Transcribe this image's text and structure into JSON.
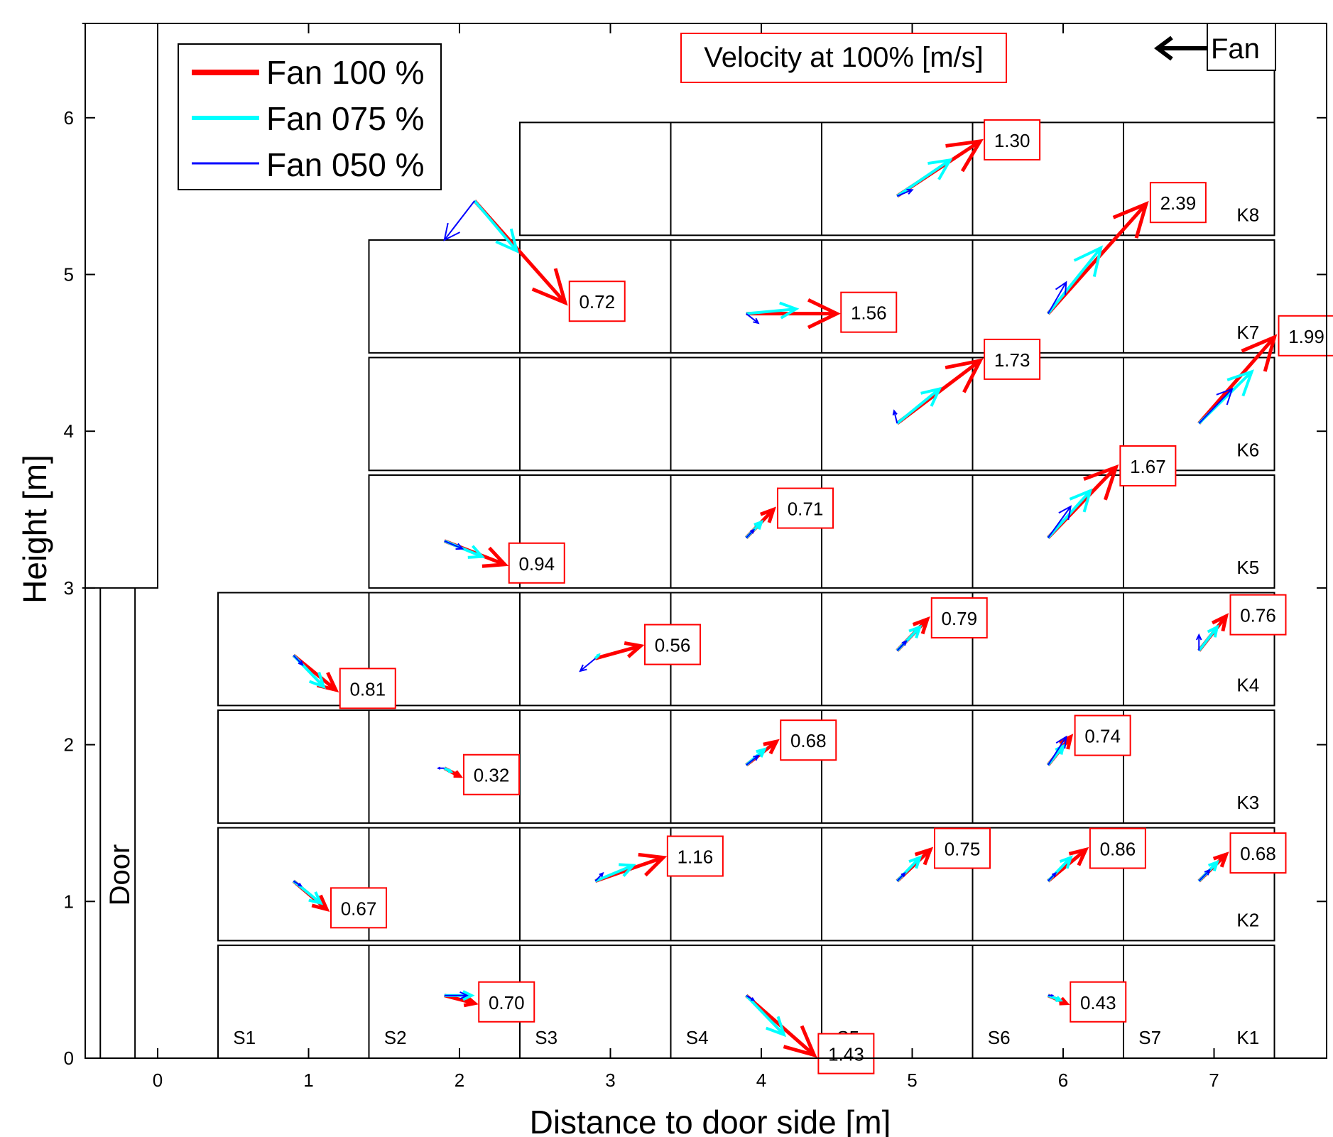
{
  "chart_data": {
    "type": "quiver",
    "xlabel": "Distance to door side [m]",
    "ylabel": "Height [m]",
    "xlim": [
      -0.5,
      7.6
    ],
    "ylim": [
      0,
      6.6
    ],
    "xticks": [
      0,
      1,
      2,
      3,
      4,
      5,
      6,
      7
    ],
    "yticks": [
      0,
      1,
      2,
      3,
      4,
      5,
      6
    ],
    "annotation_title": "Velocity at 100% [m/s]",
    "fan_label": "Fan",
    "door_label": "Door",
    "legend": {
      "placement": "top-left",
      "entries": [
        {
          "label": "Fan 100 %",
          "color": "#ff0000"
        },
        {
          "label": "Fan 075 %",
          "color": "#00ffff"
        },
        {
          "label": "Fan 050 %",
          "color": "#0000ff"
        }
      ]
    },
    "colors": {
      "fan100": "#ff0000",
      "fan075": "#00ffff",
      "fan050": "#0000ff",
      "box": "#000000"
    },
    "rows": [
      {
        "label": "K1",
        "y0": 0.0,
        "y1": 0.72,
        "x0": 0.4,
        "x1": 7.4
      },
      {
        "label": "K2",
        "y0": 0.75,
        "y1": 1.47,
        "x0": 0.4,
        "x1": 7.4
      },
      {
        "label": "K3",
        "y0": 1.5,
        "y1": 2.22,
        "x0": 0.4,
        "x1": 7.4
      },
      {
        "label": "K4",
        "y0": 2.25,
        "y1": 2.97,
        "x0": 0.4,
        "x1": 7.4
      },
      {
        "label": "K5",
        "y0": 3.0,
        "y1": 3.72,
        "x0": 1.4,
        "x1": 7.4
      },
      {
        "label": "K6",
        "y0": 3.75,
        "y1": 4.47,
        "x0": 1.4,
        "x1": 7.4
      },
      {
        "label": "K7",
        "y0": 4.5,
        "y1": 5.22,
        "x0": 1.4,
        "x1": 7.4
      },
      {
        "label": "K8",
        "y0": 5.25,
        "y1": 5.97,
        "x0": 2.4,
        "x1": 7.4
      }
    ],
    "column_labels": [
      "S1",
      "S2",
      "S3",
      "S4",
      "S5",
      "S6",
      "S7"
    ],
    "vectors": [
      {
        "x": 2.1,
        "y": 5.47,
        "u": 0.6,
        "v": -0.65,
        "u75": 0.28,
        "v75": -0.32,
        "u50": -0.2,
        "v50": -0.25,
        "label": "0.72"
      },
      {
        "x": 4.9,
        "y": 5.5,
        "u": 0.55,
        "v": 0.35,
        "u75": 0.35,
        "v75": 0.23,
        "u50": 0.1,
        "v50": 0.04,
        "label": "1.30"
      },
      {
        "x": 5.9,
        "y": 4.75,
        "u": 0.65,
        "v": 0.7,
        "u75": 0.35,
        "v75": 0.42,
        "u50": 0.12,
        "v50": 0.2,
        "label": "2.39"
      },
      {
        "x": 3.9,
        "y": 4.75,
        "u": 0.6,
        "v": 0.0,
        "u75": 0.33,
        "v75": 0.03,
        "u50": 0.08,
        "v50": -0.06,
        "label": "1.56"
      },
      {
        "x": 4.9,
        "y": 4.05,
        "u": 0.55,
        "v": 0.4,
        "u75": 0.28,
        "v75": 0.22,
        "u50": -0.02,
        "v50": 0.08,
        "label": "1.73"
      },
      {
        "x": 6.9,
        "y": 4.05,
        "u": 0.5,
        "v": 0.55,
        "u75": 0.35,
        "v75": 0.33,
        "u50": 0.22,
        "v50": 0.22,
        "label": "1.99"
      },
      {
        "x": 5.9,
        "y": 3.32,
        "u": 0.45,
        "v": 0.45,
        "u75": 0.28,
        "v75": 0.3,
        "u50": 0.15,
        "v50": 0.2,
        "label": "1.67"
      },
      {
        "x": 3.9,
        "y": 3.32,
        "u": 0.18,
        "v": 0.18,
        "u75": 0.1,
        "v75": 0.1,
        "u50": 0.05,
        "v50": 0.05,
        "label": "0.71"
      },
      {
        "x": 1.9,
        "y": 3.3,
        "u": 0.4,
        "v": -0.15,
        "u75": 0.25,
        "v75": -0.1,
        "u50": 0.12,
        "v50": -0.05,
        "label": "0.94"
      },
      {
        "x": 0.9,
        "y": 2.57,
        "u": 0.28,
        "v": -0.22,
        "u75": 0.2,
        "v75": -0.2,
        "u50": 0.06,
        "v50": -0.06,
        "label": "0.81"
      },
      {
        "x": 2.9,
        "y": 2.55,
        "u": 0.3,
        "v": 0.08,
        "u75": 0.02,
        "v75": 0.02,
        "u50": -0.1,
        "v50": -0.08,
        "label": "0.56"
      },
      {
        "x": 4.9,
        "y": 2.6,
        "u": 0.2,
        "v": 0.2,
        "u75": 0.15,
        "v75": 0.15,
        "u50": 0.06,
        "v50": 0.06,
        "label": "0.79"
      },
      {
        "x": 6.9,
        "y": 2.6,
        "u": 0.18,
        "v": 0.22,
        "u75": 0.12,
        "v75": 0.15,
        "u50": 0.0,
        "v50": 0.1,
        "label": "0.76"
      },
      {
        "x": 3.9,
        "y": 1.87,
        "u": 0.2,
        "v": 0.15,
        "u75": 0.12,
        "v75": 0.1,
        "u50": 0.08,
        "v50": 0.06,
        "label": "0.68"
      },
      {
        "x": 5.9,
        "y": 1.87,
        "u": 0.15,
        "v": 0.18,
        "u75": 0.1,
        "v75": 0.12,
        "u50": 0.12,
        "v50": 0.18,
        "label": "0.74"
      },
      {
        "x": 1.9,
        "y": 1.85,
        "u": 0.1,
        "v": -0.05,
        "u75": 0.04,
        "v75": -0.02,
        "u50": -0.04,
        "v50": 0.0,
        "label": "0.32"
      },
      {
        "x": 0.9,
        "y": 1.13,
        "u": 0.22,
        "v": -0.18,
        "u75": 0.18,
        "v75": -0.14,
        "u50": 0.05,
        "v50": -0.03,
        "label": "0.67"
      },
      {
        "x": 2.9,
        "y": 1.13,
        "u": 0.45,
        "v": 0.15,
        "u75": 0.25,
        "v75": 0.1,
        "u50": 0.05,
        "v50": 0.05,
        "label": "1.16"
      },
      {
        "x": 4.9,
        "y": 1.13,
        "u": 0.22,
        "v": 0.2,
        "u75": 0.15,
        "v75": 0.15,
        "u50": 0.05,
        "v50": 0.05,
        "label": "0.75"
      },
      {
        "x": 5.9,
        "y": 1.13,
        "u": 0.25,
        "v": 0.2,
        "u75": 0.15,
        "v75": 0.15,
        "u50": 0.05,
        "v50": 0.05,
        "label": "0.86"
      },
      {
        "x": 6.9,
        "y": 1.13,
        "u": 0.18,
        "v": 0.17,
        "u75": 0.12,
        "v75": 0.12,
        "u50": 0.07,
        "v50": 0.07,
        "label": "0.68"
      },
      {
        "x": 1.9,
        "y": 0.4,
        "u": 0.2,
        "v": -0.05,
        "u75": 0.18,
        "v75": 0.0,
        "u50": 0.15,
        "v50": 0.0,
        "label": "0.70"
      },
      {
        "x": 3.9,
        "y": 0.4,
        "u": 0.45,
        "v": -0.38,
        "u75": 0.25,
        "v75": -0.25,
        "u50": 0.05,
        "v50": -0.03,
        "label": "1.43"
      },
      {
        "x": 5.9,
        "y": 0.4,
        "u": 0.12,
        "v": -0.05,
        "u75": 0.08,
        "v75": -0.03,
        "u50": 0.03,
        "v50": 0.0,
        "label": "0.43"
      }
    ]
  }
}
